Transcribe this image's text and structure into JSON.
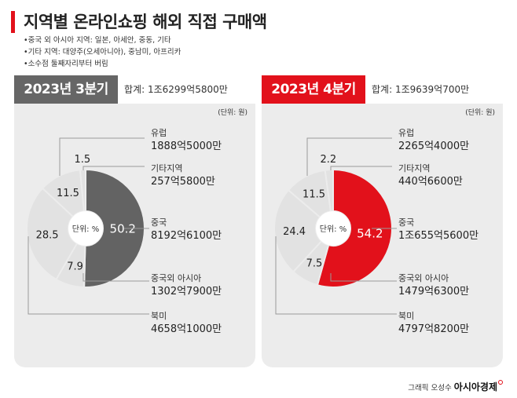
{
  "header": {
    "title": "지역별 온라인쇼핑 해외 직접 구매액",
    "notes": [
      "•중국 외 아시아 지역: 일본, 아세안, 중동, 기타",
      "•기타 지역: 대양주(오세아니아), 중남미, 아프리카",
      "•소수점 둘째자리부터 버림"
    ]
  },
  "colors": {
    "accent": "#e2111b",
    "q3_header": "#666666",
    "china_q3": "#636363",
    "china_q4": "#e2111b"
  },
  "footer": {
    "credit": "그래픽 오성수",
    "brand": "아시아경제"
  },
  "chart_data": [
    {
      "type": "pie",
      "title": "2023년 3분기",
      "total": "합계: 1조6299억5800만",
      "unit": "(단위: 원)",
      "center_label": "단위: %",
      "categories": [
        "중국",
        "중국외 아시아",
        "북미",
        "유럽",
        "기타지역"
      ],
      "values": [
        50.2,
        7.9,
        28.5,
        11.5,
        1.5
      ],
      "value_labels": [
        "50.2",
        "7.9",
        "28.5",
        "11.5",
        "1.5"
      ],
      "amounts": [
        "8192억6100만",
        "1302억7900만",
        "4658억1000만",
        "1888억5000만",
        "257억5800만"
      ]
    },
    {
      "type": "pie",
      "title": "2023년 4분기",
      "total": "합계: 1조9639억700만",
      "unit": "(단위: 원)",
      "center_label": "단위: %",
      "categories": [
        "중국",
        "중국외 아시아",
        "북미",
        "유럽",
        "기타지역"
      ],
      "values": [
        54.2,
        7.5,
        24.4,
        11.5,
        2.2
      ],
      "value_labels": [
        "54.2",
        "7.5",
        "24.4",
        "11.5",
        "2.2"
      ],
      "amounts": [
        "1조655억5600만",
        "1479억6300만",
        "4797억8200만",
        "2265억4000만",
        "440억6600만"
      ]
    }
  ]
}
